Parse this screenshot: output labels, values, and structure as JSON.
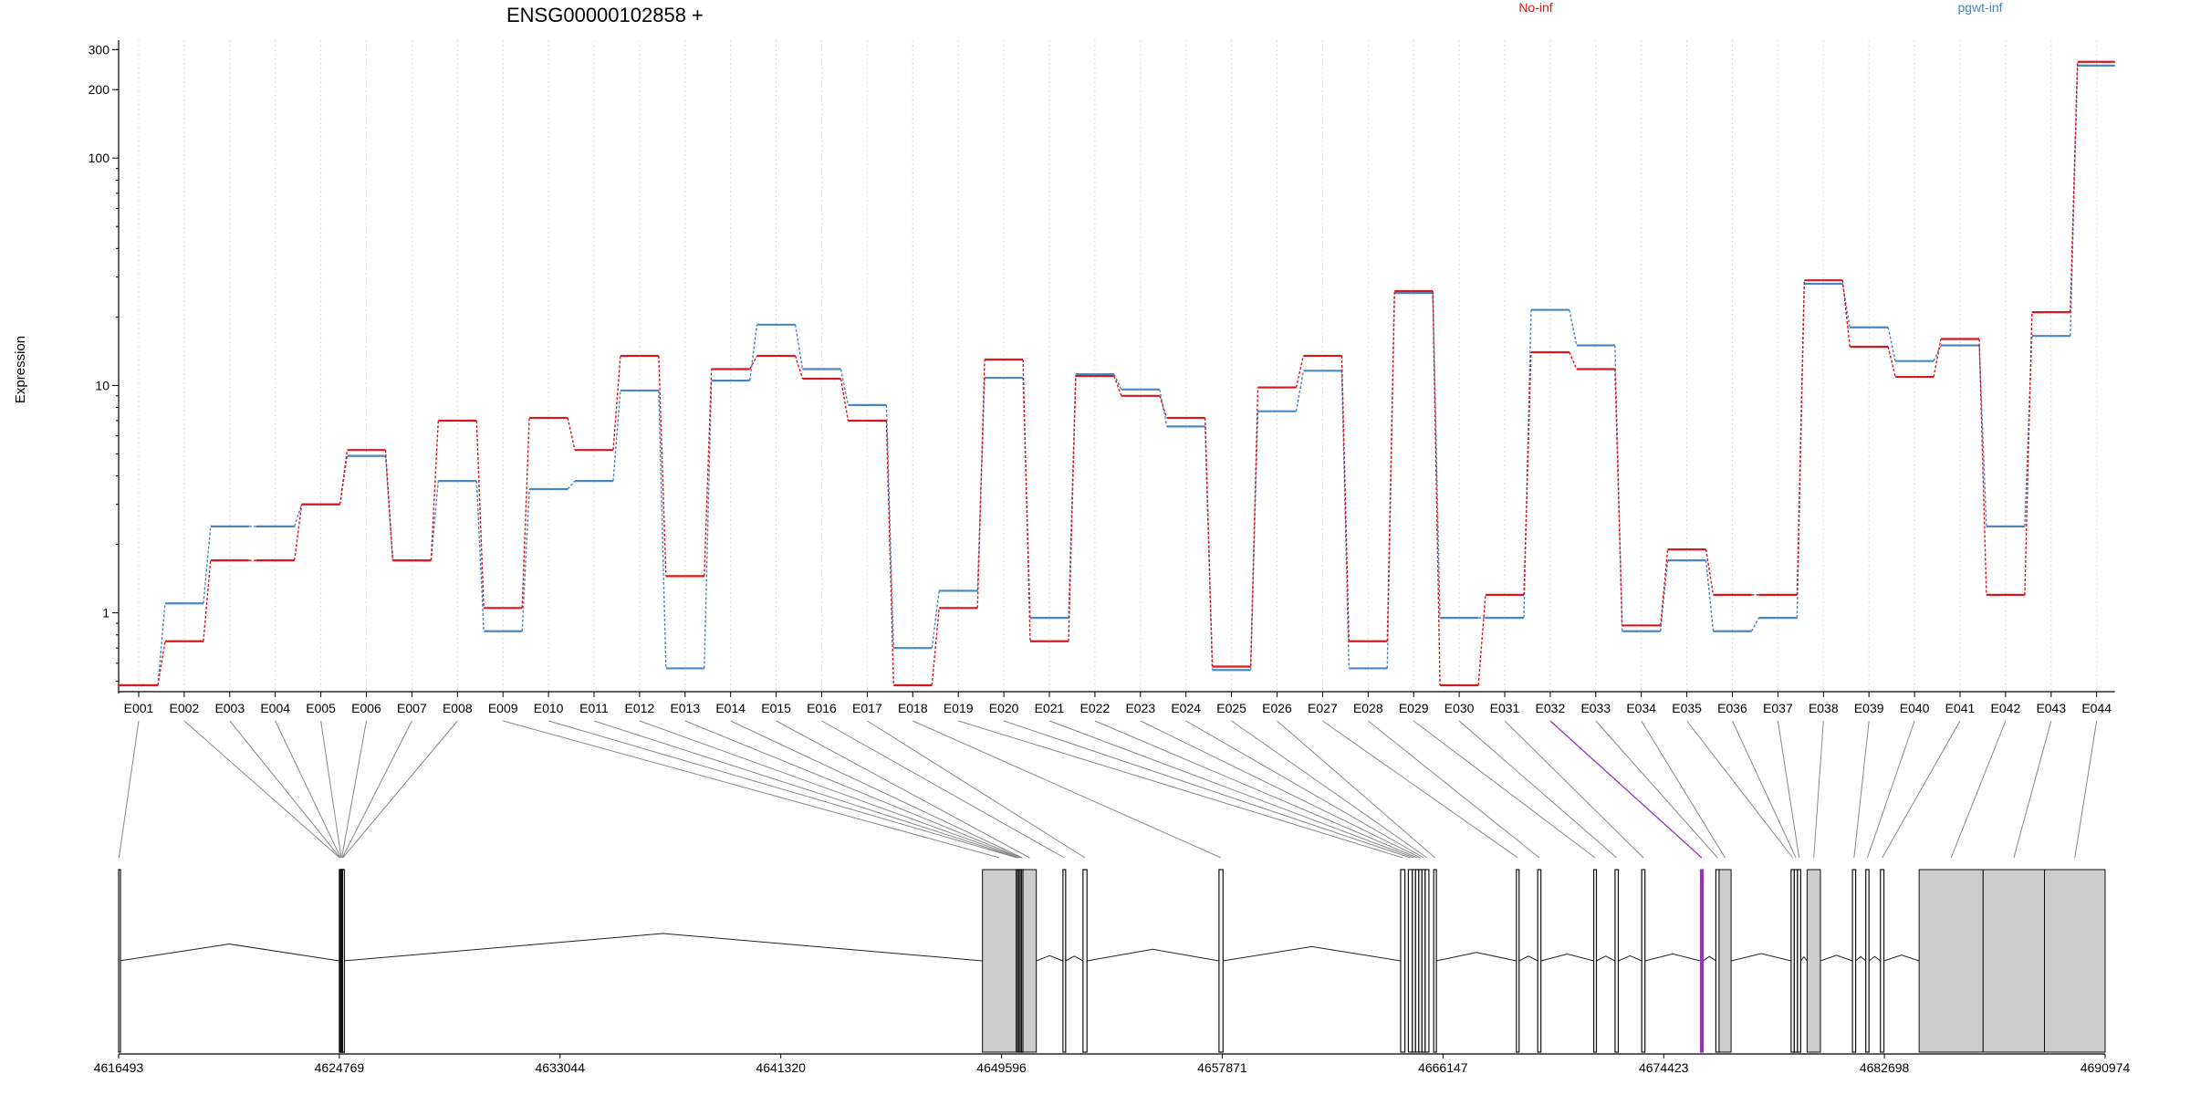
{
  "chart_data": {
    "type": "line",
    "title": "ENSG00000102858 +",
    "ylabel": "Expression",
    "xlabel": "",
    "y_scale": "log",
    "ylim": [
      0.45,
      330
    ],
    "y_ticks": [
      {
        "value": 300,
        "label": "300"
      },
      {
        "value": 200,
        "label": "200"
      },
      {
        "value": 100,
        "label": "100"
      },
      {
        "value": 10,
        "label": "10"
      },
      {
        "value": 1,
        "label": "1"
      }
    ],
    "grid": "vertical dotted at each exon",
    "legend": "top-right",
    "categories": [
      "E001",
      "E002",
      "E003",
      "E004",
      "E005",
      "E006",
      "E007",
      "E008",
      "E009",
      "E010",
      "E011",
      "E012",
      "E013",
      "E014",
      "E015",
      "E016",
      "E017",
      "E018",
      "E019",
      "E020",
      "E021",
      "E022",
      "E023",
      "E024",
      "E025",
      "E026",
      "E027",
      "E028",
      "E029",
      "E030",
      "E031",
      "E032",
      "E033",
      "E034",
      "E035",
      "E036",
      "E037",
      "E038",
      "E039",
      "E040",
      "E041",
      "E042",
      "E043",
      "E044"
    ],
    "series": [
      {
        "name": "No-inf",
        "color": "#d7191c",
        "values": [
          0.48,
          0.75,
          1.7,
          1.7,
          3.0,
          5.2,
          1.7,
          7.0,
          1.05,
          7.2,
          5.2,
          13.5,
          1.45,
          11.8,
          13.5,
          10.7,
          7.0,
          0.48,
          1.05,
          13.0,
          0.75,
          11.0,
          9.0,
          7.2,
          0.58,
          9.8,
          13.5,
          0.75,
          26,
          0.48,
          1.2,
          14,
          11.8,
          0.88,
          1.9,
          1.2,
          1.2,
          29,
          14.8,
          10.9,
          16,
          1.2,
          21,
          265
        ]
      },
      {
        "name": "pgwt-inf",
        "color": "#4a87c2",
        "values": [
          0.48,
          1.1,
          2.4,
          2.4,
          3.0,
          4.9,
          1.7,
          3.8,
          0.83,
          3.5,
          3.8,
          9.5,
          0.57,
          10.5,
          18.5,
          11.8,
          8.2,
          0.7,
          1.25,
          10.8,
          0.95,
          11.2,
          9.6,
          6.6,
          0.56,
          7.7,
          11.6,
          0.57,
          25.5,
          0.95,
          0.95,
          21.5,
          15,
          0.83,
          1.7,
          0.83,
          0.95,
          28,
          18,
          12.8,
          15,
          2.4,
          16.5,
          255
        ]
      }
    ],
    "gene_model": {
      "coordinate_labels": [
        "4616493",
        "4624769",
        "4633044",
        "4641320",
        "4649596",
        "4657871",
        "4666147",
        "4674423",
        "4682698",
        "4690974"
      ],
      "highlighted_exon": "E032",
      "highlight_color": "#9b30c0"
    }
  }
}
